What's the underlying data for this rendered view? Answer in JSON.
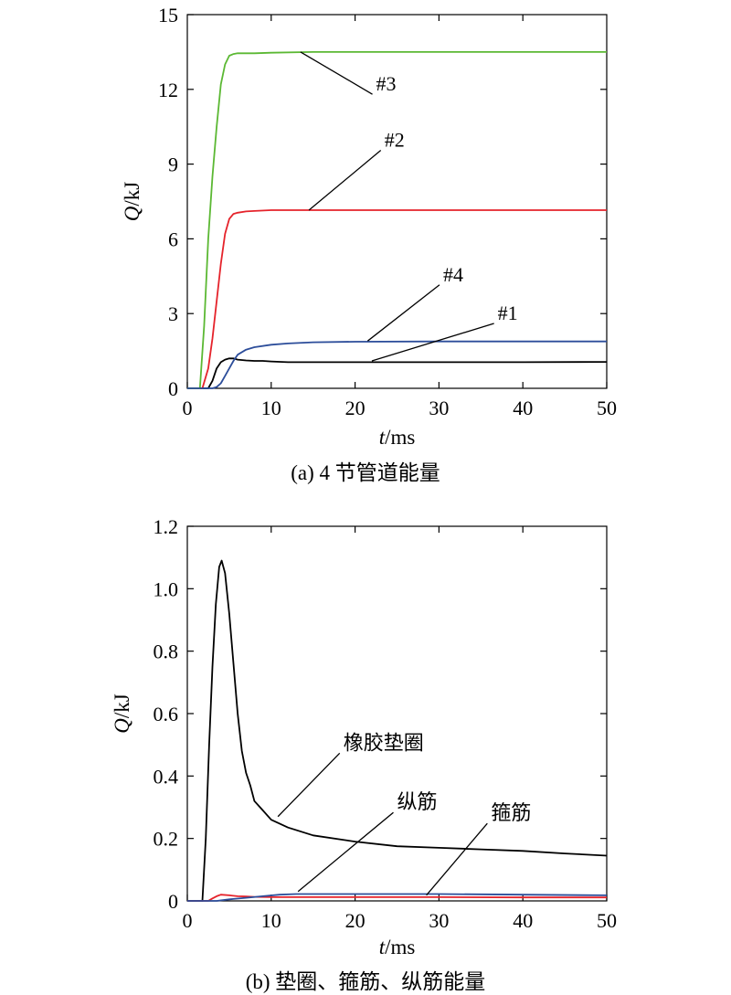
{
  "chart_data": [
    {
      "type": "line",
      "caption": "(a) 4 节管道能量",
      "xlabel_var": "t",
      "xlabel_unit": "/ms",
      "ylabel_var": "Q",
      "ylabel_unit": "/kJ",
      "xlim": [
        0,
        50
      ],
      "ylim": [
        0,
        15
      ],
      "xticks": [
        0,
        10,
        20,
        30,
        40,
        50
      ],
      "yticks": [
        0,
        3,
        6,
        9,
        12,
        15
      ],
      "ytick_labels": [
        "0",
        "3",
        "6",
        "9",
        "12",
        "15"
      ],
      "grid": false,
      "series": [
        {
          "name": "#1",
          "color": "#000000",
          "x": [
            0,
            2.5,
            3.0,
            3.5,
            4.0,
            4.5,
            5.0,
            5.5,
            6.0,
            7.0,
            8.0,
            9.0,
            10,
            12,
            15,
            20,
            25,
            30,
            40,
            50
          ],
          "y": [
            0,
            0,
            0.3,
            0.8,
            1.05,
            1.15,
            1.2,
            1.2,
            1.15,
            1.12,
            1.1,
            1.1,
            1.08,
            1.05,
            1.05,
            1.05,
            1.05,
            1.05,
            1.05,
            1.06
          ]
        },
        {
          "name": "#2",
          "color": "#e5232b",
          "x": [
            0,
            1.8,
            2.5,
            3.0,
            3.5,
            4.0,
            4.5,
            5.0,
            5.5,
            6.0,
            7.0,
            8.0,
            10,
            15,
            20,
            30,
            40,
            50
          ],
          "y": [
            0,
            0,
            0.8,
            2.0,
            3.5,
            5.0,
            6.2,
            6.8,
            7.0,
            7.05,
            7.1,
            7.12,
            7.15,
            7.15,
            7.15,
            7.15,
            7.15,
            7.15
          ]
        },
        {
          "name": "#3",
          "color": "#5bb833",
          "x": [
            0,
            1.5,
            2.0,
            2.5,
            3.0,
            3.5,
            4.0,
            4.5,
            5.0,
            5.5,
            6.0,
            8.0,
            10,
            15,
            20,
            30,
            40,
            50
          ],
          "y": [
            0,
            0,
            2.5,
            6.0,
            8.5,
            10.5,
            12.2,
            13.0,
            13.35,
            13.42,
            13.45,
            13.45,
            13.47,
            13.5,
            13.5,
            13.5,
            13.5,
            13.5
          ]
        },
        {
          "name": "#4",
          "color": "#2c4d9a",
          "x": [
            0,
            3.0,
            3.5,
            4.0,
            4.5,
            5.0,
            5.5,
            6.0,
            7.0,
            8.0,
            10,
            12,
            15,
            20,
            30,
            40,
            50
          ],
          "y": [
            0,
            0,
            0.05,
            0.2,
            0.5,
            0.8,
            1.1,
            1.35,
            1.55,
            1.65,
            1.75,
            1.8,
            1.85,
            1.87,
            1.88,
            1.88,
            1.88
          ]
        }
      ],
      "annotations": [
        {
          "label": "#3",
          "target": [
            13.5,
            13.5
          ],
          "text_at": [
            22.5,
            11.95
          ]
        },
        {
          "label": "#2",
          "target": [
            14.5,
            7.15
          ],
          "text_at": [
            23.5,
            9.7
          ]
        },
        {
          "label": "#4",
          "target": [
            21.5,
            1.9
          ],
          "text_at": [
            30.5,
            4.3
          ]
        },
        {
          "label": "#1",
          "target": [
            22,
            1.1
          ],
          "text_at": [
            37,
            2.75
          ]
        }
      ]
    },
    {
      "type": "line",
      "caption": "(b) 垫圈、箍筋、纵筋能量",
      "xlabel_var": "t",
      "xlabel_unit": "/ms",
      "ylabel_var": "Q",
      "ylabel_unit": "/kJ",
      "xlim": [
        0,
        50
      ],
      "ylim": [
        0,
        1.2
      ],
      "xticks": [
        0,
        10,
        20,
        30,
        40,
        50
      ],
      "yticks": [
        0,
        0.2,
        0.4,
        0.6,
        0.8,
        1.0,
        1.2
      ],
      "ytick_labels": [
        "0",
        "0.2",
        "0.4",
        "0.6",
        "0.8",
        "1.0",
        "1.2"
      ],
      "grid": false,
      "series": [
        {
          "name": "橡胶垫圈",
          "color": "#000000",
          "x": [
            0,
            1.8,
            2.2,
            2.6,
            3.0,
            3.4,
            3.8,
            4.1,
            4.5,
            5.0,
            5.5,
            6.0,
            6.5,
            7.0,
            7.5,
            8.0,
            9.0,
            10,
            12,
            15,
            20,
            25,
            30,
            35,
            40,
            45,
            50
          ],
          "y": [
            0,
            0,
            0.2,
            0.5,
            0.75,
            0.95,
            1.07,
            1.09,
            1.05,
            0.92,
            0.76,
            0.6,
            0.48,
            0.41,
            0.37,
            0.32,
            0.29,
            0.26,
            0.235,
            0.21,
            0.19,
            0.175,
            0.17,
            0.165,
            0.16,
            0.152,
            0.145
          ]
        },
        {
          "name": "纵筋",
          "color": "#e5232b",
          "x": [
            0,
            2.5,
            3.0,
            3.5,
            4.0,
            5.0,
            6.0,
            7.0,
            8.0,
            10,
            15,
            20,
            30,
            40,
            50
          ],
          "y": [
            0,
            0,
            0.008,
            0.015,
            0.02,
            0.018,
            0.015,
            0.014,
            0.013,
            0.012,
            0.012,
            0.012,
            0.012,
            0.011,
            0.011
          ]
        },
        {
          "name": "箍筋",
          "color": "#2c4d9a",
          "x": [
            0,
            3.5,
            5.0,
            7.0,
            9.0,
            11,
            13,
            15,
            20,
            30,
            40,
            50
          ],
          "y": [
            0,
            0,
            0.005,
            0.01,
            0.015,
            0.02,
            0.022,
            0.022,
            0.022,
            0.022,
            0.02,
            0.018
          ]
        }
      ],
      "annotations": [
        {
          "label": "橡胶垫圈",
          "target": [
            10.8,
            0.27
          ],
          "text_at": [
            18.6,
            0.485
          ]
        },
        {
          "label": "纵筋",
          "target": [
            13.2,
            0.03
          ],
          "text_at": [
            25,
            0.295
          ]
        },
        {
          "label": "箍筋",
          "target": [
            28.5,
            0.018
          ],
          "text_at": [
            36.2,
            0.26
          ]
        }
      ]
    }
  ]
}
